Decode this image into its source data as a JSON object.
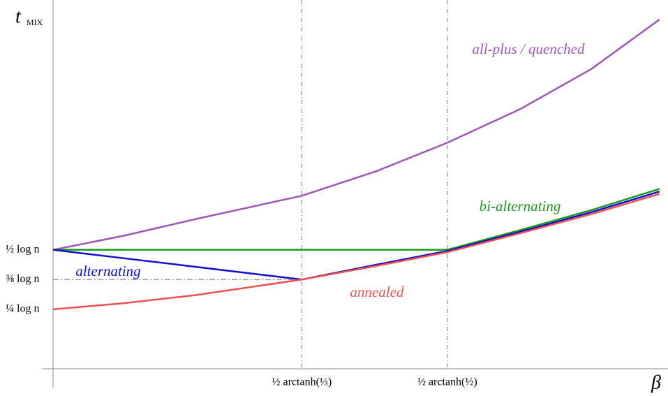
{
  "chart_data": {
    "type": "line",
    "y_label": "t",
    "y_label_subscript": "MIX",
    "x_label": "β",
    "x": [
      0,
      0.1,
      0.2,
      0.3466,
      0.45,
      0.5493,
      0.65,
      0.75,
      0.845
    ],
    "series": [
      {
        "name": "all-plus / quenched",
        "color": "#a155b9",
        "values": [
          0.5,
          0.56,
          0.63,
          0.727,
          0.83,
          0.95,
          1.09,
          1.26,
          1.468
        ]
      },
      {
        "name": "bi-alternating",
        "color": "#1a9a1a",
        "values": [
          0.5,
          0.5,
          0.5,
          0.5,
          0.5,
          0.5,
          0.582,
          0.667,
          0.756
        ]
      },
      {
        "name": "alternating",
        "color": "#1010d0",
        "values": [
          0.5,
          0.464,
          0.428,
          0.375,
          0.437,
          0.495,
          0.575,
          0.658,
          0.745
        ]
      },
      {
        "name": "annealed",
        "color": "#f05050",
        "values": [
          0.25,
          0.276,
          0.31,
          0.375,
          0.432,
          0.49,
          0.569,
          0.65,
          0.735
        ]
      }
    ],
    "xlim": [
      0,
      0.85
    ],
    "ylim": [
      0,
      1.55
    ],
    "xticks": [
      {
        "value": 0.3466,
        "label": "½ arctanh(⅓)"
      },
      {
        "value": 0.5493,
        "label": "½ arctanh(½)"
      }
    ],
    "yticks": [
      {
        "value": 0.5,
        "label": "½ log n"
      },
      {
        "value": 0.375,
        "label": "⅜ log n"
      },
      {
        "value": 0.25,
        "label": "¼ log n"
      }
    ]
  }
}
